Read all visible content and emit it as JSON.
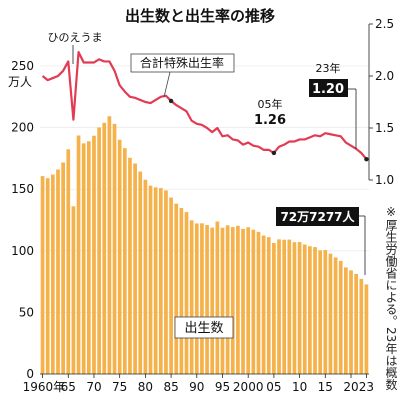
{
  "chart_data": {
    "type": "bar+line",
    "title": "出生数と出生率の推移",
    "x": [
      1960,
      1961,
      1962,
      1963,
      1964,
      1965,
      1966,
      1967,
      1968,
      1969,
      1970,
      1971,
      1972,
      1973,
      1974,
      1975,
      1976,
      1977,
      1978,
      1979,
      1980,
      1981,
      1982,
      1983,
      1984,
      1985,
      1986,
      1987,
      1988,
      1989,
      1990,
      1991,
      1992,
      1993,
      1994,
      1995,
      1996,
      1997,
      1998,
      1999,
      2000,
      2001,
      2002,
      2003,
      2004,
      2005,
      2006,
      2007,
      2008,
      2009,
      2010,
      2011,
      2012,
      2013,
      2014,
      2015,
      2016,
      2017,
      2018,
      2019,
      2020,
      2021,
      2022,
      2023
    ],
    "x_tick_labels": [
      "1960年",
      "65",
      "70",
      "75",
      "80",
      "85",
      "90",
      "95",
      "2000",
      "05",
      "10",
      "15",
      "20",
      "23"
    ],
    "left_axis": {
      "unit": "万人",
      "ticks": [
        "0",
        "50",
        "100",
        "150",
        "200",
        "250"
      ],
      "ylim": [
        0,
        250
      ]
    },
    "right_axis": {
      "ticks": [
        "1.0",
        "1.5",
        "2.0",
        "2.5"
      ],
      "ylim": [
        1.0,
        2.5
      ]
    },
    "series": [
      {
        "name": "出生数",
        "kind": "bar",
        "color": "#f5b14a",
        "values": [
          160.6,
          158.9,
          161.9,
          166.0,
          171.7,
          182.4,
          136.1,
          193.6,
          187.2,
          188.9,
          193.4,
          200.1,
          203.9,
          209.2,
          203.0,
          190.1,
          183.3,
          175.5,
          170.9,
          164.3,
          157.7,
          152.9,
          151.5,
          150.9,
          149.0,
          143.2,
          138.3,
          134.7,
          131.4,
          124.7,
          122.2,
          122.3,
          120.9,
          118.8,
          123.8,
          118.7,
          120.7,
          119.2,
          120.3,
          117.8,
          119.1,
          117.1,
          115.4,
          112.4,
          111.1,
          106.3,
          109.3,
          109.0,
          109.1,
          107.0,
          107.1,
          105.1,
          103.7,
          103.0,
          100.4,
          100.6,
          97.7,
          94.6,
          91.8,
          86.5,
          84.1,
          81.2,
          77.1,
          72.7
        ]
      },
      {
        "name": "合計特殊出生率",
        "kind": "line",
        "color": "#e23b53",
        "values": [
          2.0,
          1.96,
          1.98,
          2.0,
          2.05,
          2.14,
          1.58,
          2.23,
          2.13,
          2.13,
          2.13,
          2.16,
          2.14,
          2.14,
          2.05,
          1.91,
          1.85,
          1.8,
          1.79,
          1.77,
          1.75,
          1.74,
          1.77,
          1.8,
          1.81,
          1.76,
          1.72,
          1.69,
          1.66,
          1.57,
          1.54,
          1.53,
          1.5,
          1.46,
          1.5,
          1.42,
          1.43,
          1.39,
          1.38,
          1.34,
          1.36,
          1.33,
          1.32,
          1.29,
          1.29,
          1.26,
          1.32,
          1.34,
          1.37,
          1.37,
          1.39,
          1.39,
          1.41,
          1.43,
          1.42,
          1.45,
          1.44,
          1.43,
          1.42,
          1.36,
          1.33,
          1.3,
          1.26,
          1.2
        ]
      }
    ],
    "annotations": {
      "hinoeuma": "ひのえうま",
      "rate_label": "合計特殊出生率",
      "y05_year": "05年",
      "y05_value": "1.26",
      "y23_year": "23年",
      "y23_value": "1.20",
      "births_23": "72万7277人",
      "births_label": "出生数",
      "note": "※厚生労働省による。23年は概数"
    }
  }
}
